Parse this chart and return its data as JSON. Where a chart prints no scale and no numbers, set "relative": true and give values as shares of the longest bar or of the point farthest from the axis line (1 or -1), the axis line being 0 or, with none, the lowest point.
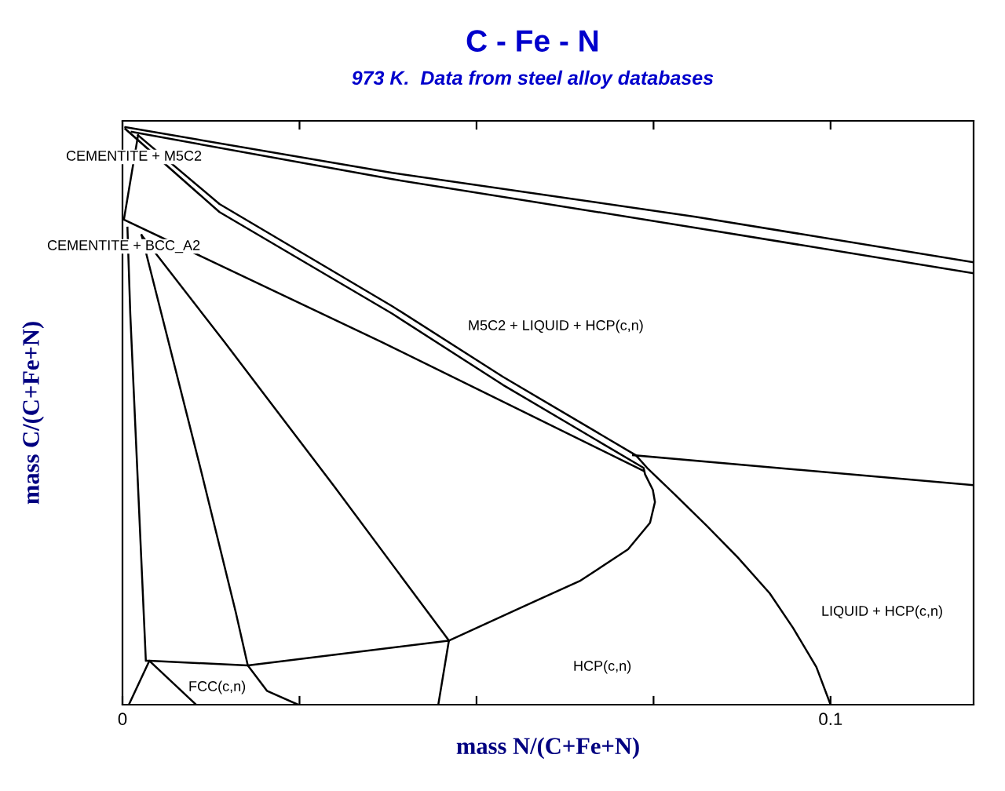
{
  "chart_data": {
    "type": "line",
    "title": "C - Fe - N",
    "subtitle": "973 K.  Data from steel alloy databases",
    "xlabel": "mass N/(C+Fe+N)",
    "ylabel": "mass C/(C+Fe+N)",
    "relative": true,
    "xlim": [
      0,
      0.1202
    ],
    "xticks": [
      0,
      {
        "value": 0.025,
        "label": null
      },
      {
        "value": 0.05,
        "label": null
      },
      {
        "value": 0.075,
        "label": null
      },
      0.1
    ],
    "grid": false,
    "marker": "none",
    "line_style": "solid",
    "tick_labels": "x",
    "series": [
      {
        "color": "#000000",
        "x": [
          0.0004,
          0.0381,
          0.0809,
          0.1202
        ],
        "values": [
          1.0,
          0.921,
          0.845,
          0.766
        ]
      },
      {
        "color": "#000000",
        "x": [
          0.0013,
          0.0381,
          0.0809,
          0.1202
        ],
        "values": [
          0.992,
          0.91,
          0.826,
          0.747
        ]
      },
      {
        "color": "#000000",
        "x": [
          0.0004,
          0.0137,
          0.0381,
          0.0537,
          0.0736,
          0.0738,
          0.0749,
          0.0752,
          0.0745,
          0.0714,
          0.0647,
          0.0559,
          0.0461,
          0.0446
        ],
        "values": [
          0.997,
          0.853,
          0.677,
          0.554,
          0.41,
          0.399,
          0.372,
          0.351,
          0.315,
          0.269,
          0.215,
          0.166,
          0.111,
          0.0
        ]
      },
      {
        "color": "#000000",
        "x": [
          0.0022,
          0.0137,
          0.0381,
          0.0537,
          0.0725,
          0.0741,
          0.078,
          0.0825,
          0.0869,
          0.0914,
          0.0947,
          0.098,
          0.1
        ],
        "values": [
          0.986,
          0.867,
          0.69,
          0.568,
          0.432,
          0.41,
          0.364,
          0.31,
          0.255,
          0.193,
          0.133,
          0.065,
          0.0
        ]
      },
      {
        "color": "#000000",
        "x": [
          0.0022,
          0.0002,
          0.0366,
          0.0736
        ],
        "values": [
          0.986,
          0.84,
          0.628,
          0.405
        ]
      },
      {
        "color": "#000000",
        "x": [
          0.0721,
          0.1202
        ],
        "values": [
          0.432,
          0.38
        ]
      },
      {
        "color": "#000000",
        "x": [
          0.0027,
          0.0144,
          0.0299,
          0.0461
        ],
        "values": [
          0.813,
          0.628,
          0.378,
          0.111
        ]
      },
      {
        "color": "#000000",
        "x": [
          0.0027,
          0.0055,
          0.0111,
          0.016,
          0.0177,
          0.0204,
          0.0248
        ],
        "values": [
          0.813,
          0.677,
          0.405,
          0.16,
          0.068,
          0.024,
          0.0
        ]
      },
      {
        "color": "#000000",
        "x": [
          0.0007,
          0.0011,
          0.0033,
          0.0038,
          0.0177,
          0.0461
        ],
        "values": [
          0.826,
          0.677,
          0.076,
          0.076,
          0.068,
          0.111
        ]
      },
      {
        "color": "#000000",
        "x": [
          0.0009,
          0.0038,
          0.0104
        ],
        "values": [
          0.0,
          0.076,
          0.0
        ]
      }
    ],
    "annotations": [
      "CEMENTITE + M5C2",
      "CEMENTITE + BCC_A2",
      "M5C2 + LIQUID + HCP(c,n)",
      "LIQUID + HCP(c,n)",
      "HCP(c,n)",
      "FCC(c,n)"
    ]
  }
}
